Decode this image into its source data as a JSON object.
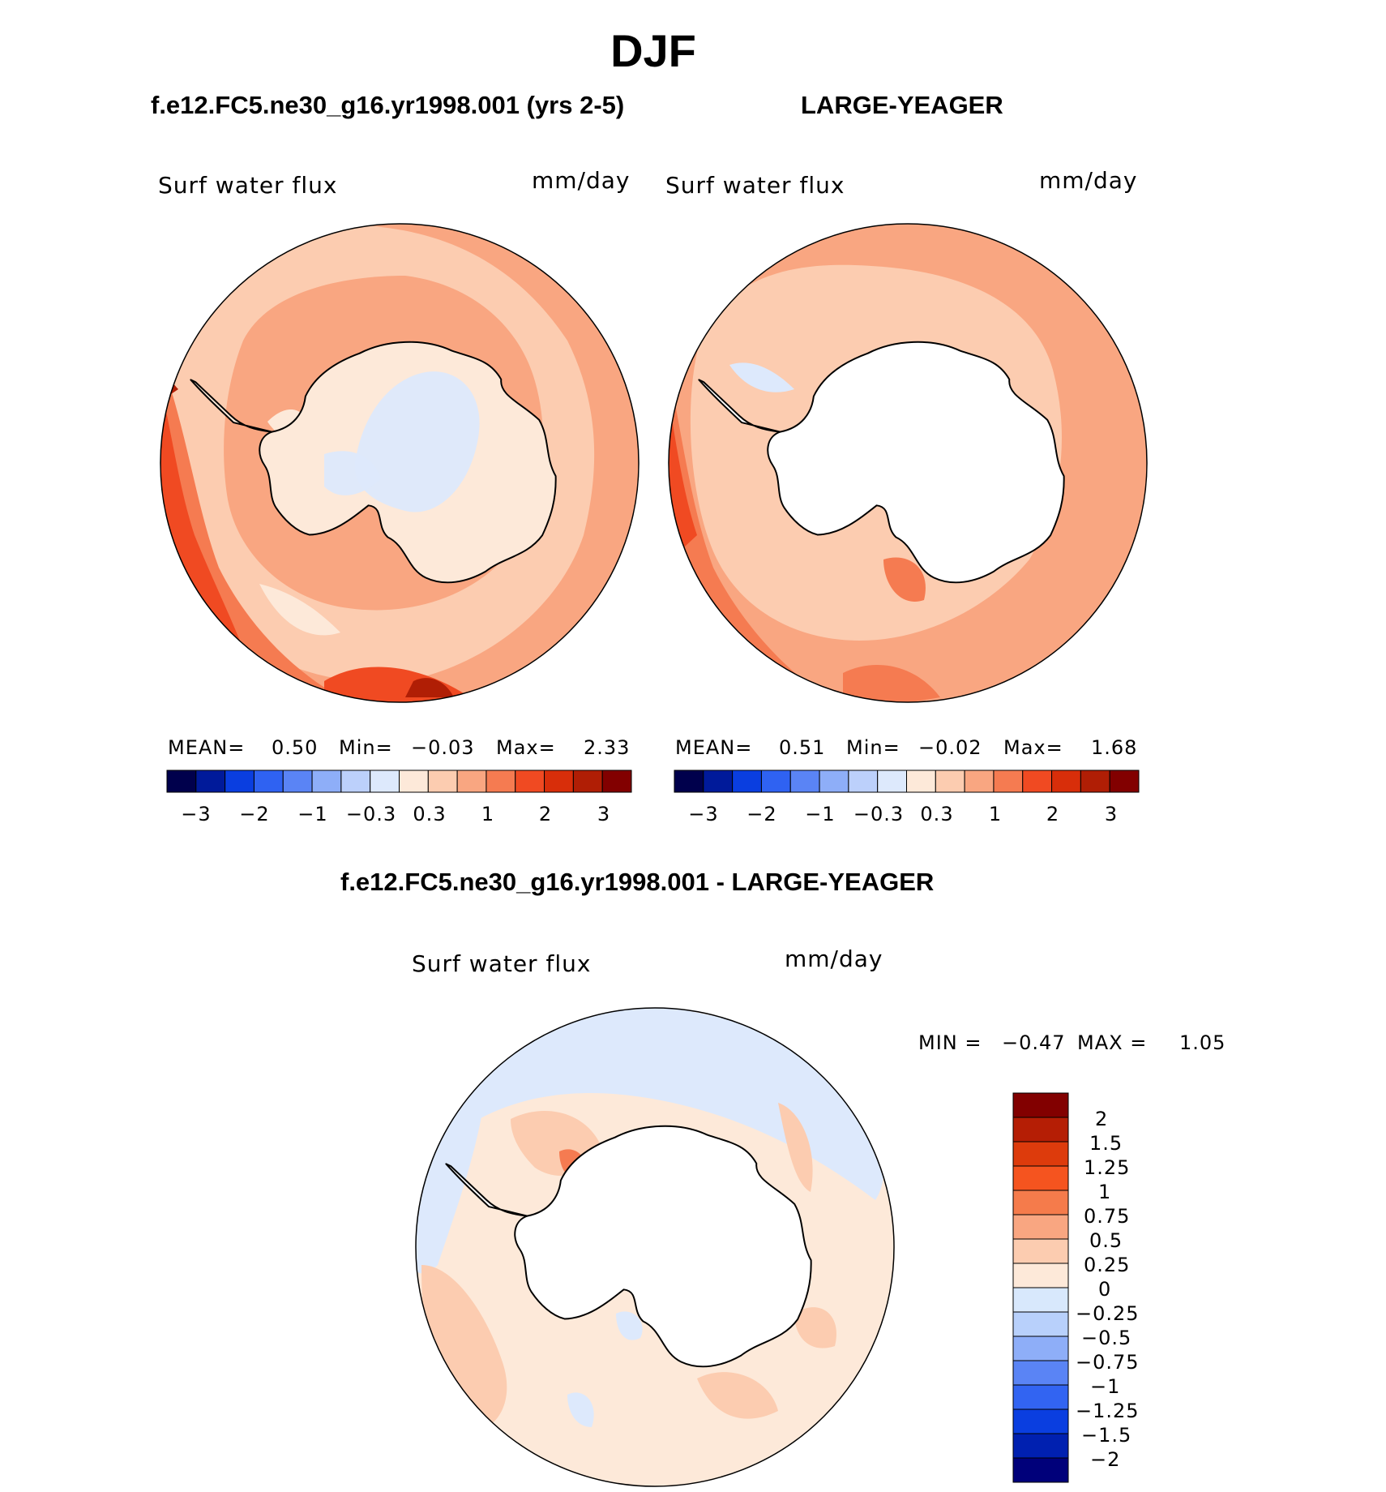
{
  "figure": {
    "title": "DJF",
    "difference_title": "f.e12.FC5.ne30_g16.yr1998.001 - LARGE-YEAGER"
  },
  "panels": [
    {
      "title": "f.e12.FC5.ne30_g16.yr1998.001 (yrs 2-5)",
      "variable": "Surf  water  flux",
      "units": "mm/day",
      "stats": {
        "mean_label": "MEAN=",
        "mean": "0.50",
        "min_label": "Min=",
        "min": "−0.03",
        "max_label": "Max=",
        "max": "2.33"
      }
    },
    {
      "title": "LARGE-YEAGER",
      "variable": "Surf  water  flux",
      "units": "mm/day",
      "stats": {
        "mean_label": "MEAN=",
        "mean": "0.51",
        "min_label": "Min=",
        "min": "−0.02",
        "max_label": "Max=",
        "max": "1.68"
      }
    },
    {
      "title": "f.e12.FC5.ne30_g16.yr1998.001 - LARGE-YEAGER",
      "variable": "Surf  water  flux",
      "units": "mm/day",
      "stats": {
        "min_label": "MIN =",
        "min": "−0.47",
        "max_label": "MAX =",
        "max": "1.05"
      }
    }
  ],
  "colorbar_main": {
    "colors": [
      "#00004c",
      "#001a9a",
      "#0a3ee0",
      "#2f62f2",
      "#5a84f5",
      "#8eaef8",
      "#bcd0fb",
      "#dde9fc",
      "#fde9d9",
      "#fcccb0",
      "#f9a681",
      "#f57b51",
      "#f04a22",
      "#d82e0a",
      "#b01e05",
      "#820000"
    ],
    "tick_labels": [
      "−3",
      "−2",
      "−1",
      "−0.3",
      "0.3",
      "1",
      "2",
      "3"
    ]
  },
  "colorbar_diff": {
    "colors": [
      "#820000",
      "#b51e05",
      "#dd3b0c",
      "#f5541f",
      "#f57b4b",
      "#f9a681",
      "#fcccb0",
      "#fde9d9",
      "#d8e8fc",
      "#b8d0fb",
      "#8eaef8",
      "#5a84f5",
      "#3264f2",
      "#0a3ee0",
      "#0020b0",
      "#00007a"
    ],
    "tick_labels": [
      "2",
      "1.5",
      "1.25",
      "1",
      "0.75",
      "0.5",
      "0.25",
      "0",
      "−0.25",
      "−0.5",
      "−0.75",
      "−1",
      "−1.25",
      "−1.5",
      "−2"
    ]
  },
  "map_colors": {
    "ocean_background": "#f9a681",
    "light_orange": "#fcccb0",
    "cream": "#fde9d9",
    "dark_orange": "#f57b51",
    "red": "#f04a22",
    "dark_red": "#b01e05",
    "light_blue": "#dde9fc",
    "mid_blue": "#bcd0fb",
    "blue": "#8eaef8",
    "land_white": "#ffffff",
    "coastline": "#000000"
  }
}
